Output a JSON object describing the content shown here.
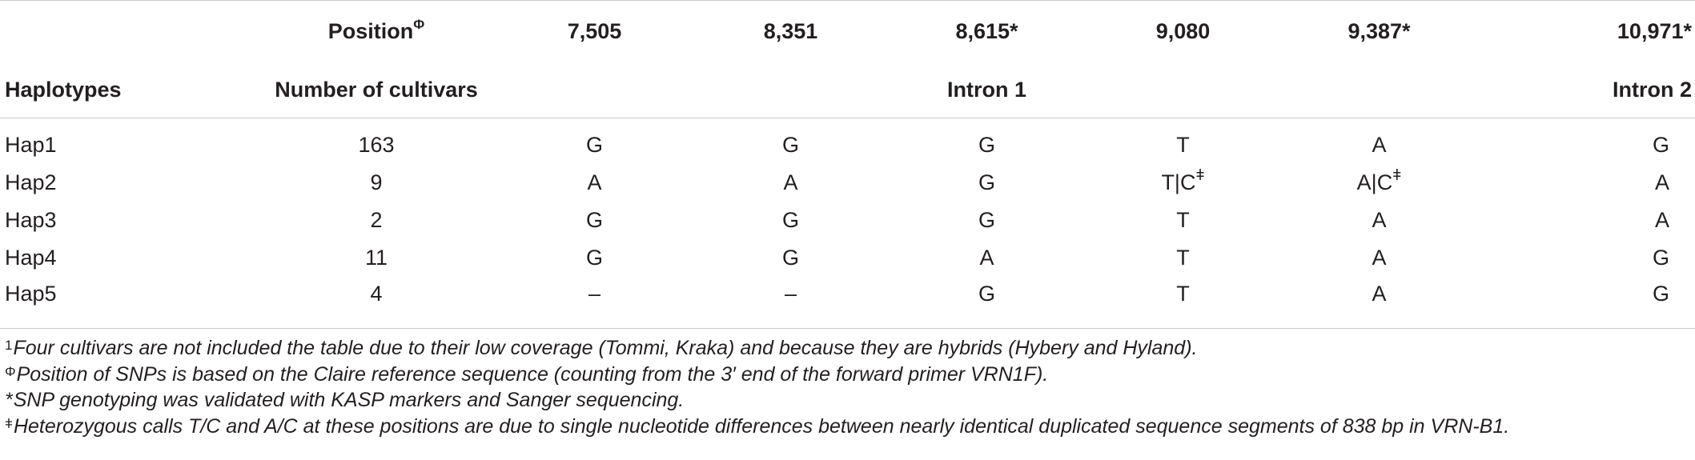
{
  "table": {
    "header1": {
      "position_label": "Position",
      "position_mark": "Φ",
      "positions": [
        "7,505",
        "8,351",
        "8,615*",
        "9,080",
        "9,387*",
        "10,971*"
      ]
    },
    "header2": {
      "haplotypes_label": "Haplotypes",
      "cultivars_label": "Number of cultivars",
      "intron1_label": "Intron 1",
      "intron2_label": "Intron 2"
    },
    "rows": [
      {
        "hap": "Hap1",
        "count": "163",
        "v1": "G",
        "v2": "G",
        "v3": "G",
        "v4": "T",
        "v4mark": "",
        "v5": "A",
        "v5mark": "",
        "v6": "G"
      },
      {
        "hap": "Hap2",
        "count": "9",
        "v1": "A",
        "v2": "A",
        "v3": "G",
        "v4": "T|C",
        "v4mark": "ǂ",
        "v5": "A|C",
        "v5mark": "ǂ",
        "v6": "A"
      },
      {
        "hap": "Hap3",
        "count": "2",
        "v1": "G",
        "v2": "G",
        "v3": "G",
        "v4": "T",
        "v4mark": "",
        "v5": "A",
        "v5mark": "",
        "v6": "A"
      },
      {
        "hap": "Hap4",
        "count": "11",
        "v1": "G",
        "v2": "G",
        "v3": "A",
        "v4": "T",
        "v4mark": "",
        "v5": "A",
        "v5mark": "",
        "v6": "G"
      },
      {
        "hap": "Hap5",
        "count": "4",
        "v1": "–",
        "v2": "–",
        "v3": "G",
        "v4": "T",
        "v4mark": "",
        "v5": "A",
        "v5mark": "",
        "v6": "G"
      }
    ]
  },
  "footnotes": [
    {
      "mark": "1",
      "text": "Four cultivars are not included the table due to their low coverage (Tommi, Kraka) and because they are hybrids (Hybery and Hyland)."
    },
    {
      "mark": "Φ",
      "text": "Position of SNPs is based on the Claire reference sequence (counting from the 3′ end of the forward primer VRN1F)."
    },
    {
      "mark": "*",
      "text": "SNP genotyping was validated with KASP markers and Sanger sequencing."
    },
    {
      "mark": "ǂ",
      "text": "Heterozygous calls T/C and A/C at these positions are due to single nucleotide differences between nearly identical duplicated sequence segments of 838 bp in VRN-B1."
    }
  ]
}
